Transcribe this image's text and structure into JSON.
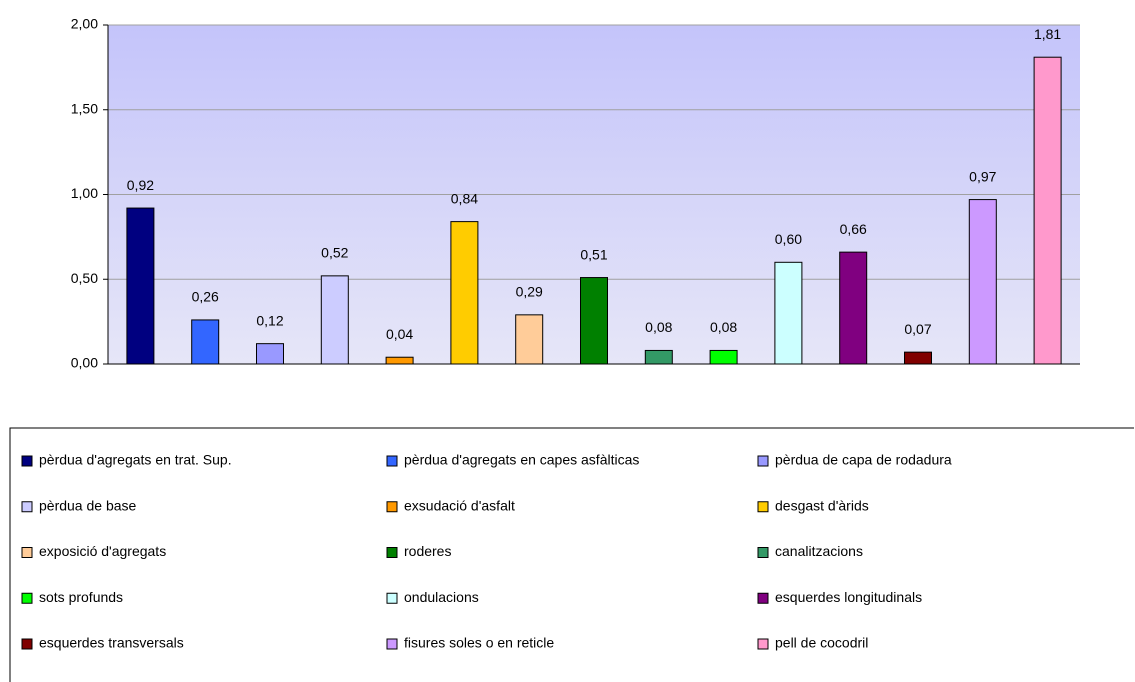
{
  "chart_data": {
    "type": "bar",
    "ylim": [
      0,
      2
    ],
    "yticks": [
      {
        "value": 0,
        "label": "0,00"
      },
      {
        "value": 0.5,
        "label": "0,50"
      },
      {
        "value": 1,
        "label": "1,00"
      },
      {
        "value": 1.5,
        "label": "1,50"
      },
      {
        "value": 2,
        "label": "2,00"
      }
    ],
    "grid": true,
    "legend": "bottom",
    "series": [
      {
        "name": "pèrdua d'agregats en trat. Sup.",
        "color": "#000080",
        "values": [
          0.92
        ],
        "value_labels": [
          "0,92"
        ]
      },
      {
        "name": "pèrdua d'agregats en capes asfàlticas",
        "color": "#3366ff",
        "values": [
          0.26
        ],
        "value_labels": [
          "0,26"
        ]
      },
      {
        "name": "pèrdua de capa de rodadura",
        "color": "#9999ff",
        "values": [
          0.12
        ],
        "value_labels": [
          "0,12"
        ]
      },
      {
        "name": "pèrdua de base",
        "color": "#ccccff",
        "values": [
          0.52
        ],
        "value_labels": [
          "0,52"
        ]
      },
      {
        "name": "exsudació d'asfalt",
        "color": "#ff9900",
        "values": [
          0.04
        ],
        "value_labels": [
          "0,04"
        ]
      },
      {
        "name": "desgast d'àrids",
        "color": "#ffcc00",
        "values": [
          0.84
        ],
        "value_labels": [
          "0,84"
        ]
      },
      {
        "name": "exposició d'agregats",
        "color": "#ffcc99",
        "values": [
          0.29
        ],
        "value_labels": [
          "0,29"
        ]
      },
      {
        "name": "roderes",
        "color": "#008000",
        "values": [
          0.51
        ],
        "value_labels": [
          "0,51"
        ]
      },
      {
        "name": "canalitzacions",
        "color": "#339966",
        "values": [
          0.08
        ],
        "value_labels": [
          "0,08"
        ]
      },
      {
        "name": "sots profunds",
        "color": "#00ff00",
        "values": [
          0.08
        ],
        "value_labels": [
          "0,08"
        ]
      },
      {
        "name": "ondulacions",
        "color": "#ccffff",
        "values": [
          0.6
        ],
        "value_labels": [
          "0,60"
        ]
      },
      {
        "name": "esquerdes longitudinals",
        "color": "#800080",
        "values": [
          0.66
        ],
        "value_labels": [
          "0,66"
        ]
      },
      {
        "name": "esquerdes transversals",
        "color": "#800000",
        "values": [
          0.07
        ],
        "value_labels": [
          "0,07"
        ]
      },
      {
        "name": "fisures soles o en reticle",
        "color": "#cc99ff",
        "values": [
          0.97
        ],
        "value_labels": [
          "0,97"
        ]
      },
      {
        "name": "pell de cocodril",
        "color": "#ff99cc",
        "values": [
          1.81
        ],
        "value_labels": [
          "1,81"
        ]
      }
    ]
  }
}
